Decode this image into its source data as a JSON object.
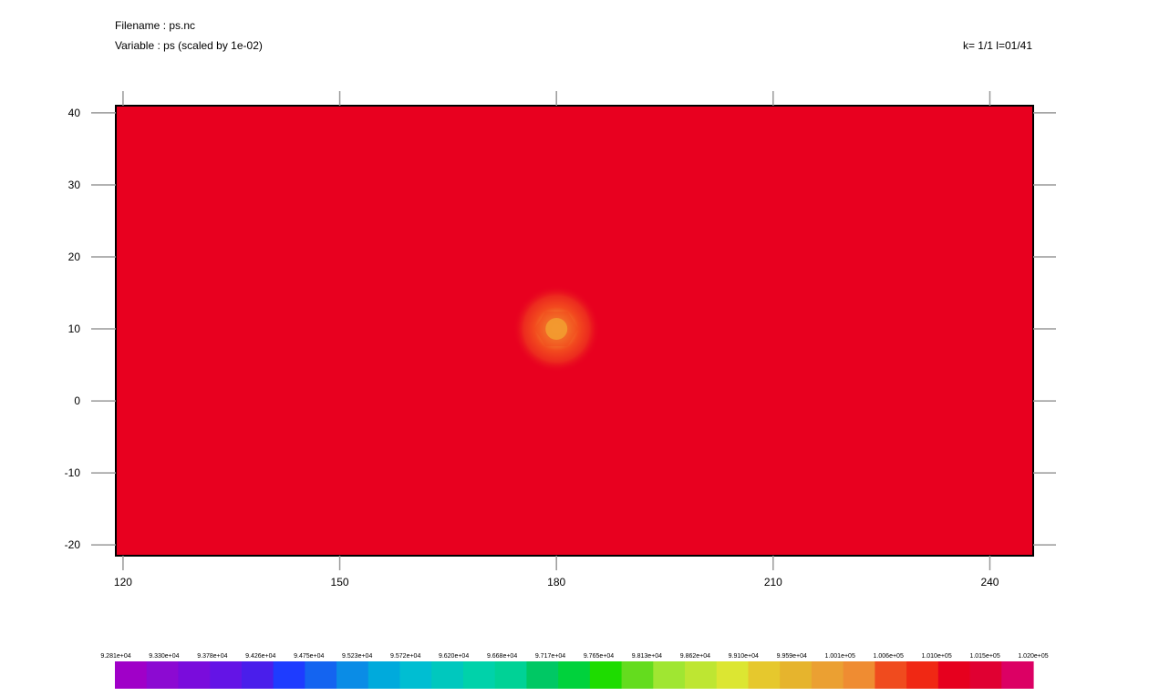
{
  "header": {
    "filename_line": "Filename : ps.nc",
    "variable_line": "Variable : ps (scaled by 1e-02)",
    "index_line": "k= 1/1 l=01/41"
  },
  "chart_data": {
    "type": "heatmap",
    "title": "",
    "xlabel": "",
    "ylabel": "",
    "xlim": [
      119,
      246
    ],
    "ylim": [
      -21.5,
      41
    ],
    "x_ticks": [
      120,
      150,
      180,
      210,
      240
    ],
    "y_ticks": [
      40,
      30,
      20,
      10,
      0,
      -10,
      -20
    ],
    "background_value": 101000,
    "background_color": "#e8001f",
    "feature": {
      "kind": "low-pressure center",
      "center_lon": 180,
      "center_lat": 10,
      "core_color": "#f2a030",
      "mid_color": "#f24a1e"
    },
    "colorbar": {
      "labels": [
        "9.281e+04",
        "9.330e+04",
        "9.378e+04",
        "9.426e+04",
        "9.475e+04",
        "9.523e+04",
        "9.572e+04",
        "9.620e+04",
        "9.668e+04",
        "9.717e+04",
        "9.765e+04",
        "9.813e+04",
        "9.862e+04",
        "9.910e+04",
        "9.959e+04",
        "1.001e+05",
        "1.006e+05",
        "1.010e+05",
        "1.015e+05",
        "1.020e+05"
      ],
      "colors": [
        "#a000c8",
        "#8c0ad2",
        "#7a0cdc",
        "#6414e6",
        "#4a1eeb",
        "#1e3cff",
        "#1464f0",
        "#0a8ce6",
        "#00aadc",
        "#00bed2",
        "#00c8be",
        "#00d2aa",
        "#00d296",
        "#00c864",
        "#00d23c",
        "#1edc00",
        "#64dc1e",
        "#a0e632",
        "#bee632",
        "#dce632",
        "#e6c82d",
        "#e6b42d",
        "#eba032",
        "#ef8c32",
        "#f04b1e",
        "#f02814",
        "#e6001e",
        "#e00032",
        "#dc0064"
      ]
    }
  }
}
